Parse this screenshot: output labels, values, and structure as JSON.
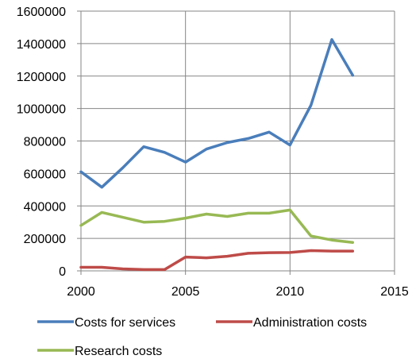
{
  "chart_data": {
    "type": "line",
    "title": "",
    "xlabel": "",
    "ylabel": "",
    "xlim": [
      2000,
      2015
    ],
    "ylim": [
      0,
      1600000
    ],
    "x_ticks": [
      2000,
      2005,
      2010,
      2015
    ],
    "y_ticks": [
      0,
      200000,
      400000,
      600000,
      800000,
      1000000,
      1200000,
      1400000,
      1600000
    ],
    "x_tick_labels": [
      "2000",
      "2005",
      "2010",
      "2015"
    ],
    "y_tick_labels": [
      "0",
      "200000",
      "400000",
      "600000",
      "800000",
      "1000000",
      "1200000",
      "1400000",
      "1600000"
    ],
    "grid": true,
    "legend_position": "bottom",
    "series": [
      {
        "name": "Costs for services",
        "color": "#4a7ebb",
        "x": [
          2000,
          2001,
          2002,
          2003,
          2004,
          2005,
          2006,
          2007,
          2008,
          2009,
          2010,
          2011,
          2012,
          2013
        ],
        "values": [
          610000,
          515000,
          635000,
          765000,
          730000,
          670000,
          750000,
          790000,
          815000,
          855000,
          775000,
          1020000,
          1425000,
          1205000
        ]
      },
      {
        "name": "Administration costs",
        "color": "#be4b48",
        "x": [
          2000,
          2001,
          2002,
          2003,
          2004,
          2005,
          2006,
          2007,
          2008,
          2009,
          2010,
          2011,
          2012,
          2013
        ],
        "values": [
          22000,
          22000,
          12000,
          8000,
          8000,
          85000,
          80000,
          90000,
          108000,
          112000,
          113000,
          125000,
          122000,
          122000
        ]
      },
      {
        "name": "Research costs",
        "color": "#98b954",
        "x": [
          2000,
          2001,
          2002,
          2003,
          2004,
          2005,
          2006,
          2007,
          2008,
          2009,
          2010,
          2011,
          2012,
          2013
        ],
        "values": [
          280000,
          360000,
          330000,
          300000,
          305000,
          325000,
          350000,
          335000,
          355000,
          355000,
          375000,
          215000,
          190000,
          175000
        ]
      }
    ]
  }
}
